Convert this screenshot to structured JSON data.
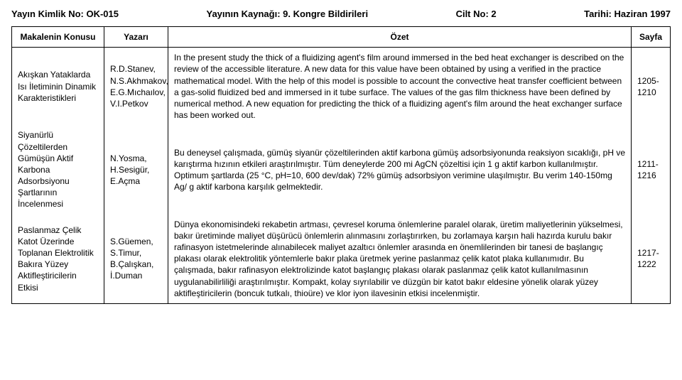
{
  "header": {
    "pub_id_label": "Yayın Kimlik No: OK-015",
    "source_label": "Yayının Kaynağı: 9. Kongre Bildirileri",
    "volume_label": "Cilt No: 2",
    "date_label": "Tarihi: Haziran 1997"
  },
  "columns": {
    "topic": "Makalenin Konusu",
    "author": "Yazarı",
    "abstract": "Özet",
    "page": "Sayfa"
  },
  "rows": [
    {
      "topic": "Akışkan Yataklarda Isı İletiminin Dinamik Karakteristikleri",
      "authors": "R.D.Stanev, N.S.Akhmakov, E.G.Mıchaılov, V.I.Petkov",
      "abstract": "In the present study the thick of a fluidizing agent's film around immersed in the bed heat exchanger is described on the review of the accessible literature. A new data for this value have been obtained by using a verified in the practice mathematical model. With the help of this model is possible to account the convective heat transfer coefficient between a gas-solid fluidized bed and immersed in it tube surface. The values of the gas film thickness have been defined by numerical method. A new equation for predicting the thick of a fluidizing agent's film around the heat exchanger surface has been worked out.",
      "pages": "1205-1210"
    },
    {
      "topic": "Siyanürlü Çözeltilerden Gümüşün Aktif Karbona Adsorbsiyonu Şartlarının İncelenmesi",
      "authors": "N.Yosma, H.Sesigür, E.Açma",
      "abstract": "Bu deneysel çalışmada, gümüş siyanür çözeltilerinden aktif karbona gümüş adsorbsiyonunda reaksiyon sıcaklığı, pH ve karıştırma hızının etkileri araştırılmıştır. Tüm deneylerde 200 mi AgCN çözeltisi için 1 g aktif karbon kullanılmıştır. Optimum şartlarda (25 °C, pH=10, 600 dev/dak) 72% gümüş adsorbsiyon verimine ulaşılmıştır. Bu verim 140-150mg Ag/ g aktif karbona karşılık gelmektedir.",
      "pages": "1211-1216"
    },
    {
      "topic": "Paslanmaz Çelik Katot Üzerinde Toplanan Elektrolitik Bakıra Yüzey Aktifleştiricilerin Etkisi",
      "authors": "S.Güemen, S.Timur, B.Çalışkan, İ.Duman",
      "abstract": "Dünya ekonomisindeki rekabetin artması, çevresel koruma önlemlerine paralel olarak, üretim maliyetlerinin yükselmesi, bakır üretiminde maliyet düşürücü önlemlerin alınmasını zorlaştırırken, bu zorlamaya karşın hali hazırda kurulu bakır rafinasyon istetmelerinde alınabilecek maliyet azaltıcı önlemler arasında en önemlilerinden bir tanesi de başlangıç plakası olarak elektrolitik yöntemlerle bakır plaka üretmek yerine paslanmaz çelik katot plaka kullanımıdır. Bu çalışmada, bakır rafinasyon elektrolizinde katot başlangıç plakası olarak paslanmaz çelik katot kullanılmasının uygulanabilirliliği araştırılmıştır. Kompakt, kolay sıyrılabilir ve düzgün bir katot bakır eldesine yönelik olarak yüzey aktifleştiricilerin (boncuk tutkalı, thioüre) ve klor iyon ilavesinin etkisi incelenmiştir.",
      "pages": "1217-1222"
    }
  ]
}
